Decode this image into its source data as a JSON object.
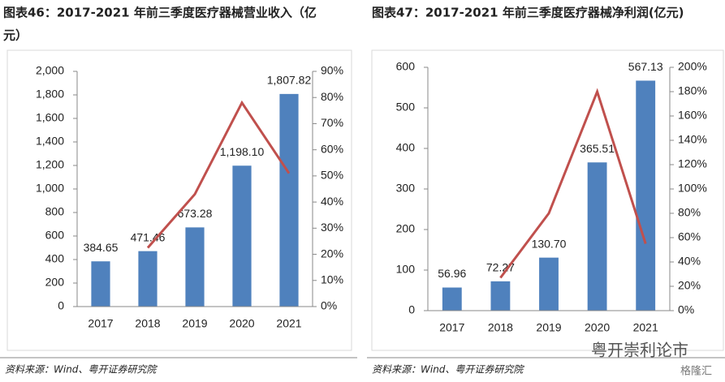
{
  "chart_data": [
    {
      "type": "bar",
      "title": "图表46：2017-2021 年前三季度医疗器械营业收入（亿元）",
      "categories": [
        "2017",
        "2018",
        "2019",
        "2020",
        "2021"
      ],
      "series": [
        {
          "type": "bar",
          "color": "#4f81bd",
          "values": [
            384.65,
            471.46,
            673.28,
            1198.1,
            1807.82
          ],
          "value_labels": [
            "384.65",
            "471.46",
            "673.28",
            "1,198.10",
            "1,807.82"
          ]
        },
        {
          "type": "line",
          "axis": "y2",
          "color": "#c0504d",
          "values": [
            null,
            22.5,
            43,
            78,
            51
          ]
        }
      ],
      "ylim": [
        0,
        2000
      ],
      "yticks": [
        0,
        200,
        400,
        600,
        800,
        {
          "value": 1000,
          "label": "1,000"
        },
        {
          "value": 1200,
          "label": "1,200"
        },
        {
          "value": 1400,
          "label": "1,400"
        },
        {
          "value": 1600,
          "label": "1,600"
        },
        {
          "value": 1800,
          "label": "1,800"
        },
        {
          "value": 2000,
          "label": "2,000"
        }
      ],
      "y2lim": [
        0,
        90
      ],
      "y2ticks": [
        {
          "value": 0,
          "label": "0%"
        },
        {
          "value": 10,
          "label": "10%"
        },
        {
          "value": 20,
          "label": "20%"
        },
        {
          "value": 30,
          "label": "30%"
        },
        {
          "value": 40,
          "label": "40%"
        },
        {
          "value": 50,
          "label": "50%"
        },
        {
          "value": 60,
          "label": "60%"
        },
        {
          "value": 70,
          "label": "70%"
        },
        {
          "value": 80,
          "label": "80%"
        },
        {
          "value": 90,
          "label": "90%"
        }
      ],
      "source": "资料来源：Wind、粤开证券研究院"
    },
    {
      "type": "bar",
      "title": "图表47：2017-2021 年前三季度医疗器械净利润(亿元)",
      "categories": [
        "2017",
        "2018",
        "2019",
        "2020",
        "2021"
      ],
      "series": [
        {
          "type": "bar",
          "color": "#4f81bd",
          "values": [
            56.96,
            72.27,
            130.7,
            365.51,
            567.13
          ],
          "value_labels": [
            "56.96",
            "72.27",
            "130.70",
            "365.51",
            "567.13"
          ]
        },
        {
          "type": "line",
          "axis": "y2",
          "color": "#c0504d",
          "values": [
            null,
            27,
            80,
            180,
            55
          ]
        }
      ],
      "ylim": [
        0,
        600
      ],
      "yticks": [
        0,
        100,
        200,
        300,
        400,
        500,
        600
      ],
      "y2lim": [
        0,
        200
      ],
      "y2ticks": [
        {
          "value": 0,
          "label": "0%"
        },
        {
          "value": 20,
          "label": "20%"
        },
        {
          "value": 40,
          "label": "40%"
        },
        {
          "value": 60,
          "label": "60%"
        },
        {
          "value": 80,
          "label": "80%"
        },
        {
          "value": 100,
          "label": "100%"
        },
        {
          "value": 120,
          "label": "120%"
        },
        {
          "value": 140,
          "label": "140%"
        },
        {
          "value": 160,
          "label": "160%"
        },
        {
          "value": 180,
          "label": "180%"
        },
        {
          "value": 200,
          "label": "200%"
        }
      ],
      "source": "资料来源：Wind、粤开证券研究院"
    }
  ],
  "watermark": "粤开崇利论市",
  "watermark_logo": "格隆汇"
}
